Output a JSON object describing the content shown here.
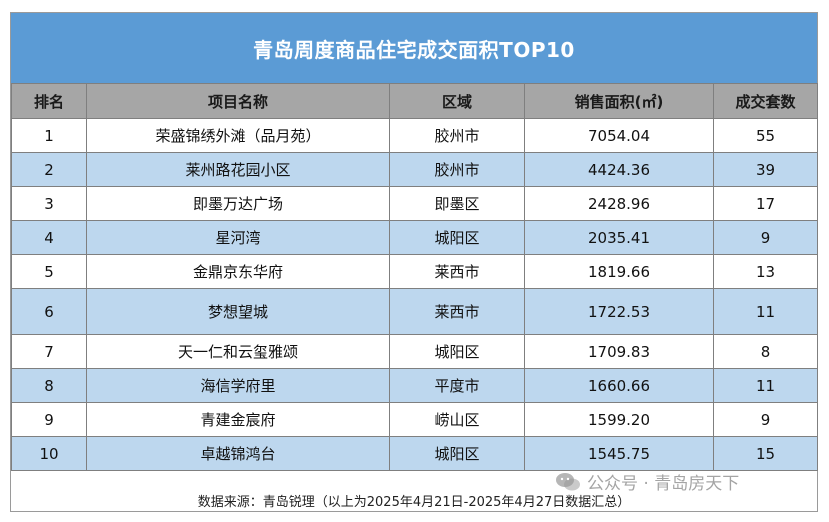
{
  "title": "青岛周度商品住宅成交面积TOP10",
  "columns": [
    "排名",
    "项目名称",
    "区域",
    "销售面积(㎡)",
    "成交套数"
  ],
  "rows": [
    {
      "rank": "1",
      "name": "荣盛锦绣外滩（品月苑）",
      "district": "胶州市",
      "area": "7054.04",
      "units": "55"
    },
    {
      "rank": "2",
      "name": "莱州路花园小区",
      "district": "胶州市",
      "area": "4424.36",
      "units": "39"
    },
    {
      "rank": "3",
      "name": "即墨万达广场",
      "district": "即墨区",
      "area": "2428.96",
      "units": "17"
    },
    {
      "rank": "4",
      "name": "星河湾",
      "district": "城阳区",
      "area": "2035.41",
      "units": "9"
    },
    {
      "rank": "5",
      "name": "金鼎京东华府",
      "district": "莱西市",
      "area": "1819.66",
      "units": "13"
    },
    {
      "rank": "6",
      "name": "梦想望城",
      "district": "莱西市",
      "area": "1722.53",
      "units": "11"
    },
    {
      "rank": "7",
      "name": "天一仁和云玺雅颂",
      "district": "城阳区",
      "area": "1709.83",
      "units": "8"
    },
    {
      "rank": "8",
      "name": "海信学府里",
      "district": "平度市",
      "area": "1660.66",
      "units": "11"
    },
    {
      "rank": "9",
      "name": "青建金宸府",
      "district": "崂山区",
      "area": "1599.20",
      "units": "9"
    },
    {
      "rank": "10",
      "name": "卓越锦鸿台",
      "district": "城阳区",
      "area": "1545.75",
      "units": "15"
    }
  ],
  "footer": "数据来源：青岛锐理（以上为2025年4月21日-2025年4月27日数据汇总）",
  "watermark": {
    "text": "公众号 · 青岛房天下",
    "icon": "wechat-icon"
  },
  "colors": {
    "title_bg": "#5b9bd5",
    "header_bg": "#a6a6a6",
    "stripe": "#bdd7ee"
  }
}
